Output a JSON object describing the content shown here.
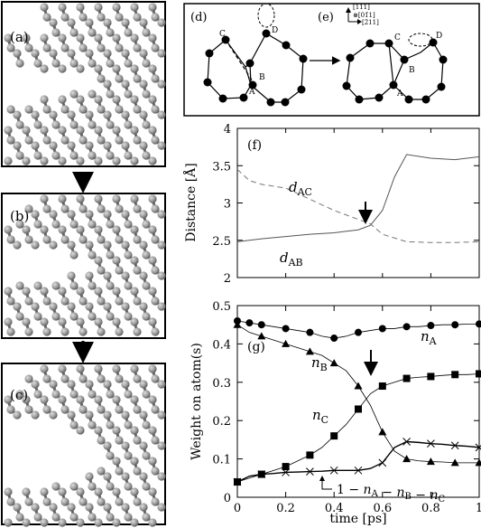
{
  "panels": {
    "a": "(a)",
    "b": "(b)",
    "c": "(c)",
    "d": "(d)",
    "e": "(e)",
    "f": "(f)",
    "g": "(g)"
  },
  "crystal_axes": {
    "up": "[111]",
    "out": "⊗[01̄1]",
    "right": "[2̄11]"
  },
  "atoms_d": {
    "A": "A",
    "B": "B",
    "C": "C",
    "D": "D"
  },
  "atoms_e": {
    "A": "A",
    "B": "B",
    "C": "C",
    "D": "D"
  },
  "chart_data": [
    {
      "panel": "(f)",
      "type": "line",
      "ylabel": "Distance [Å]",
      "ylim": [
        2,
        4
      ],
      "yticks": [
        "2",
        "2.5",
        "3",
        "3.5",
        "4"
      ],
      "xlim": [
        0,
        1
      ],
      "series": [
        {
          "name": "d_AB",
          "label_main": "d",
          "label_sub": "AB",
          "dashed": false,
          "x": [
            0,
            0.1,
            0.2,
            0.3,
            0.4,
            0.5,
            0.55,
            0.6,
            0.65,
            0.7,
            0.8,
            0.9,
            1.0
          ],
          "y": [
            2.48,
            2.52,
            2.55,
            2.58,
            2.6,
            2.64,
            2.7,
            2.9,
            3.35,
            3.65,
            3.6,
            3.58,
            3.62
          ]
        },
        {
          "name": "d_AC",
          "label_main": "d",
          "label_sub": "AC",
          "dashed": true,
          "x": [
            0,
            0.05,
            0.1,
            0.2,
            0.3,
            0.4,
            0.5,
            0.55,
            0.6,
            0.7,
            0.8,
            0.9,
            1.0
          ],
          "y": [
            3.45,
            3.3,
            3.25,
            3.2,
            3.05,
            2.9,
            2.78,
            2.72,
            2.58,
            2.48,
            2.47,
            2.47,
            2.48
          ]
        }
      ]
    },
    {
      "panel": "(g)",
      "type": "line",
      "xlabel": "time [ps]",
      "ylabel": "Weight on atom(s)",
      "xlim": [
        0,
        1
      ],
      "ylim": [
        0,
        0.5
      ],
      "xticks": [
        "0",
        "0.2",
        "0.4",
        "0.6",
        "0.8",
        "1"
      ],
      "yticks": [
        "0",
        "0.1",
        "0.2",
        "0.3",
        "0.4",
        "0.5"
      ],
      "series": [
        {
          "name": "n_A",
          "label_main": "n",
          "label_sub": "A",
          "marker": "circle",
          "x": [
            0,
            0.05,
            0.1,
            0.15,
            0.2,
            0.25,
            0.3,
            0.35,
            0.4,
            0.45,
            0.5,
            0.55,
            0.6,
            0.65,
            0.7,
            0.75,
            0.8,
            0.85,
            0.9,
            0.95,
            1.0
          ],
          "y": [
            0.46,
            0.455,
            0.45,
            0.445,
            0.44,
            0.435,
            0.43,
            0.42,
            0.415,
            0.42,
            0.43,
            0.435,
            0.44,
            0.44,
            0.445,
            0.445,
            0.448,
            0.45,
            0.45,
            0.452,
            0.452
          ]
        },
        {
          "name": "n_B",
          "label_main": "n",
          "label_sub": "B",
          "marker": "triangle",
          "x": [
            0,
            0.05,
            0.1,
            0.15,
            0.2,
            0.25,
            0.3,
            0.35,
            0.4,
            0.45,
            0.5,
            0.55,
            0.6,
            0.65,
            0.7,
            0.75,
            0.8,
            0.85,
            0.9,
            0.95,
            1.0
          ],
          "y": [
            0.45,
            0.43,
            0.42,
            0.41,
            0.4,
            0.39,
            0.38,
            0.37,
            0.35,
            0.33,
            0.29,
            0.24,
            0.17,
            0.12,
            0.1,
            0.095,
            0.093,
            0.092,
            0.09,
            0.09,
            0.09
          ]
        },
        {
          "name": "n_C",
          "label_main": "n",
          "label_sub": "C",
          "marker": "square",
          "x": [
            0,
            0.05,
            0.1,
            0.15,
            0.2,
            0.25,
            0.3,
            0.35,
            0.4,
            0.45,
            0.5,
            0.55,
            0.6,
            0.65,
            0.7,
            0.75,
            0.8,
            0.85,
            0.9,
            0.95,
            1.0
          ],
          "y": [
            0.04,
            0.05,
            0.06,
            0.07,
            0.08,
            0.095,
            0.11,
            0.13,
            0.16,
            0.19,
            0.23,
            0.27,
            0.29,
            0.3,
            0.31,
            0.313,
            0.315,
            0.318,
            0.32,
            0.32,
            0.322
          ]
        },
        {
          "name": "1-n_A-n_B-n_C",
          "label_main": "1−n",
          "label_sub": "",
          "marker": "cross",
          "x": [
            0,
            0.05,
            0.1,
            0.15,
            0.2,
            0.25,
            0.3,
            0.35,
            0.4,
            0.45,
            0.5,
            0.55,
            0.6,
            0.65,
            0.7,
            0.75,
            0.8,
            0.85,
            0.9,
            0.95,
            1.0
          ],
          "y": [
            0.04,
            0.055,
            0.06,
            0.062,
            0.065,
            0.066,
            0.067,
            0.068,
            0.07,
            0.07,
            0.07,
            0.075,
            0.09,
            0.13,
            0.145,
            0.143,
            0.14,
            0.138,
            0.135,
            0.133,
            0.13
          ]
        }
      ]
    }
  ]
}
